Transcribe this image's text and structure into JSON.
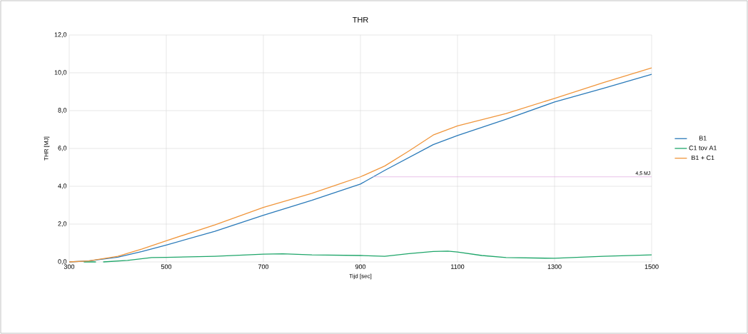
{
  "chart_data": {
    "type": "line",
    "title": "THR",
    "xlabel": "Tijd [sec]",
    "ylabel": "THR [MJ]",
    "xlim": [
      300,
      1500
    ],
    "xticks": [
      300,
      500,
      700,
      900,
      1100,
      1300,
      1500
    ],
    "ylim": [
      0,
      12
    ],
    "yticks": [
      {
        "value": 0,
        "label": "0,0"
      },
      {
        "value": 2,
        "label": "2,0"
      },
      {
        "value": 4,
        "label": "4,0"
      },
      {
        "value": 6,
        "label": "6,0"
      },
      {
        "value": 8,
        "label": "8,0"
      },
      {
        "value": 10,
        "label": "10,0"
      },
      {
        "value": 12,
        "label": "12,0"
      }
    ],
    "grid": true,
    "legend": "right",
    "marker": "none",
    "line_style": "solid",
    "series": [
      {
        "name": "B1",
        "color": "#2a7ab9",
        "x": [
          300,
          340,
          400,
          450,
          500,
          600,
          700,
          800,
          900,
          950,
          1000,
          1050,
          1100,
          1200,
          1300,
          1400,
          1500
        ],
        "values": [
          0,
          0.05,
          0.25,
          0.55,
          0.89,
          1.62,
          2.47,
          3.26,
          4.12,
          4.84,
          5.52,
          6.2,
          6.68,
          7.54,
          8.46,
          9.17,
          9.92
        ]
      },
      {
        "name": "C1 tov A1",
        "color": "#1fa66a",
        "x": [
          330,
          355,
          362,
          370,
          420,
          470,
          500,
          600,
          700,
          740,
          800,
          900,
          950,
          1000,
          1050,
          1080,
          1100,
          1150,
          1200,
          1300,
          1400,
          1500
        ],
        "values": [
          0,
          0,
          null,
          0,
          0.08,
          0.23,
          0.24,
          0.3,
          0.41,
          0.43,
          0.37,
          0.34,
          0.3,
          0.44,
          0.55,
          0.57,
          0.52,
          0.34,
          0.23,
          0.19,
          0.3,
          0.37
        ]
      },
      {
        "name": "B1 + C1",
        "color": "#f0963c",
        "x": [
          300,
          340,
          400,
          450,
          500,
          600,
          700,
          800,
          900,
          950,
          1000,
          1050,
          1100,
          1200,
          1300,
          1400,
          1500
        ],
        "values": [
          0,
          0.05,
          0.3,
          0.68,
          1.12,
          1.96,
          2.88,
          3.63,
          4.5,
          5.07,
          5.87,
          6.71,
          7.19,
          7.84,
          8.65,
          9.48,
          10.26
        ]
      },
      {
        "color": "#e0a8e0",
        "x": [
          926,
          1500
        ],
        "values": [
          4.5,
          4.5
        ]
      }
    ],
    "annotations": [
      {
        "text": "4,5 MJ",
        "x": 1500,
        "y": 4.5
      }
    ]
  }
}
